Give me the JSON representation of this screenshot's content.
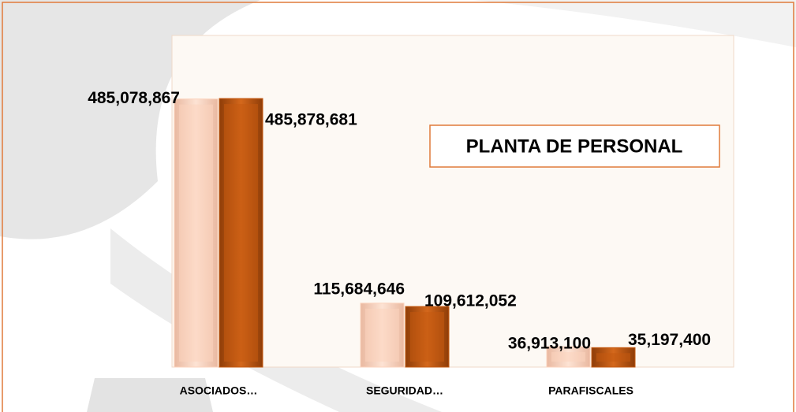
{
  "chart_data": {
    "type": "bar",
    "title": "PLANTA DE PERSONAL",
    "categories": [
      "ASOCIADOS…",
      "SEGURIDAD…",
      "PARAFISCALES"
    ],
    "series": [
      {
        "color": "#fcd3bd",
        "values": [
          485078867,
          115684646,
          36913100
        ],
        "value_labels": [
          "485,078,867",
          "115,684,646",
          "36,913,100"
        ]
      },
      {
        "color": "#c55a11",
        "values": [
          485878681,
          109612052,
          35197400
        ],
        "value_labels": [
          "485,878,681",
          "109,612,052",
          "35,197,400"
        ]
      }
    ],
    "ylim": [
      0,
      600000000
    ]
  }
}
